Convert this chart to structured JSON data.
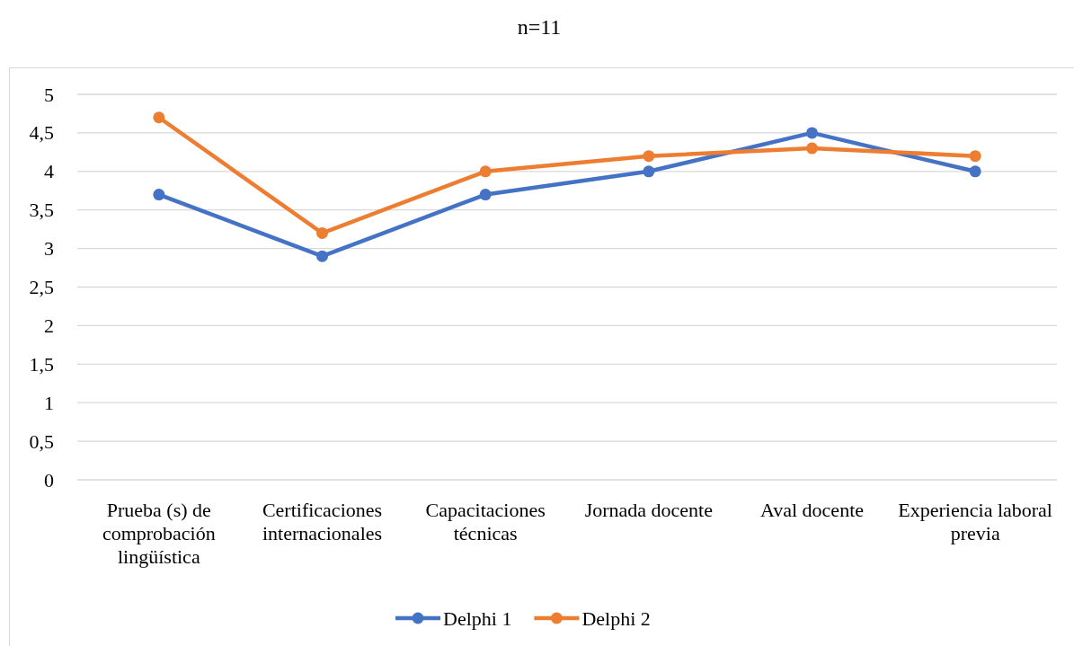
{
  "chart_data": {
    "type": "line",
    "title": "n=11",
    "categories": [
      "Prueba (s) de comprobación lingüística",
      "Certificaciones internacionales",
      "Capacitaciones técnicas",
      "Jornada docente",
      "Aval docente",
      "Experiencia laboral previa"
    ],
    "series": [
      {
        "name": "Delphi 1",
        "color": "#4472c4",
        "values": [
          3.7,
          2.9,
          3.7,
          4.0,
          4.5,
          4.0
        ]
      },
      {
        "name": "Delphi 2",
        "color": "#ed7d31",
        "values": [
          4.7,
          3.2,
          4.0,
          4.2,
          4.3,
          4.2
        ]
      }
    ],
    "ylim": [
      0,
      5
    ],
    "yticks": [
      0,
      {
        "value": 0.5,
        "label": "0,5"
      },
      1,
      {
        "value": 1.5,
        "label": "1,5"
      },
      2,
      {
        "value": 2.5,
        "label": "2,5"
      },
      3,
      {
        "value": 3.5,
        "label": "3,5"
      },
      4,
      {
        "value": 4.5,
        "label": "4,5"
      },
      5
    ],
    "grid": "y",
    "legend": "bottom",
    "marker": "circle",
    "line_style": "solid"
  }
}
